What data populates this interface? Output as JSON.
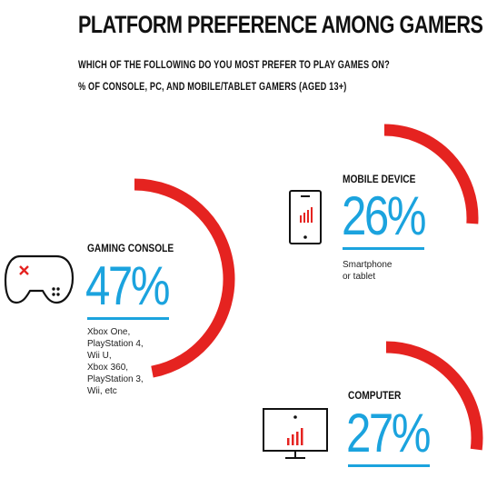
{
  "title": "PLATFORM PREFERENCE AMONG GAMERS",
  "question": "WHICH OF THE FOLLOWING DO YOU MOST PREFER TO PLAY GAMES ON?",
  "base": "% OF CONSOLE, PC, AND MOBILE/TABLET GAMERS (AGED 13+)",
  "colors": {
    "arc": "#e52320",
    "accent": "#1ba3de",
    "icon": "#111111"
  },
  "chart_data": {
    "type": "pie",
    "title": "PLATFORM PREFERENCE AMONG GAMERS",
    "categories": [
      "GAMING CONSOLE",
      "MOBILE DEVICE",
      "COMPUTER"
    ],
    "values": [
      47,
      26,
      27
    ],
    "unit": "%",
    "items": [
      {
        "label": "GAMING CONSOLE",
        "value": 47,
        "display": "47%",
        "icon": "gamepad-icon",
        "note": [
          "Xbox One,",
          "PlayStation 4,",
          "Wii U,",
          "Xbox 360,",
          "PlayStation 3,",
          "Wii, etc"
        ]
      },
      {
        "label": "MOBILE DEVICE",
        "value": 26,
        "display": "26%",
        "icon": "smartphone-icon",
        "note": [
          "Smartphone",
          "or tablet"
        ]
      },
      {
        "label": "COMPUTER",
        "value": 27,
        "display": "27%",
        "icon": "monitor-icon",
        "note": []
      }
    ]
  }
}
